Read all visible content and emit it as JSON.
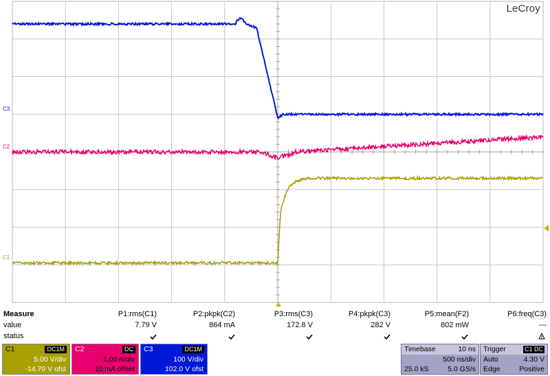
{
  "brand": "LeCroy",
  "channels": {
    "c1": {
      "label": "C1",
      "color": "#a8a000",
      "coupling": "DC1M",
      "scale": "5.00 V/div",
      "offset": "-14.70 V ofst"
    },
    "c2": {
      "label": "C2",
      "color": "#e8006e",
      "coupling": "DC",
      "scale": "1.00 A/div",
      "offset": "10 mA offset"
    },
    "c3": {
      "label": "C3",
      "color": "#0018d8",
      "coupling": "DC1M",
      "scale": "100 V/div",
      "offset": "102.0 V ofst"
    }
  },
  "measure": {
    "title": "Measure",
    "row_value": "value",
    "row_status": "status",
    "params": [
      {
        "name": "P1:rms(C1)",
        "value": "7.79 V",
        "status": "check"
      },
      {
        "name": "P2:pkpk(C2)",
        "value": "864 mA",
        "status": "check"
      },
      {
        "name": "P3:rms(C3)",
        "value": "172.8 V",
        "status": "check"
      },
      {
        "name": "P4:pkpk(C3)",
        "value": "282 V",
        "status": "check"
      },
      {
        "name": "P5:mean(F2)",
        "value": "802 mW",
        "status": "check"
      },
      {
        "name": "P6:freq(C3)",
        "value": "---",
        "status": "warning"
      }
    ]
  },
  "timebase": {
    "title": "Timebase",
    "div": "10 ns",
    "per_div": "500 ns/div",
    "samples": "25.0 kS",
    "rate": "5.0 GS/s"
  },
  "trigger": {
    "title": "Trigger",
    "source": "C1",
    "coupling": "DC",
    "mode": "Auto",
    "level": "4.30 V",
    "type": "Edge",
    "slope": "Positive"
  },
  "waveform_data": {
    "time_divisions": 10,
    "volt_divisions": 8,
    "trigger_x_div": 5,
    "c3_levels_div": {
      "before": 7.4,
      "after": 5.0,
      "edge_start_div": 4.6,
      "edge_end_div": 5.0
    },
    "c2_levels_div": {
      "baseline": 4.0,
      "dip_at_div": 4.95,
      "end": 4.4
    },
    "c1_levels_div": {
      "before": 1.05,
      "after": 3.3,
      "edge_div": 5.0
    }
  }
}
